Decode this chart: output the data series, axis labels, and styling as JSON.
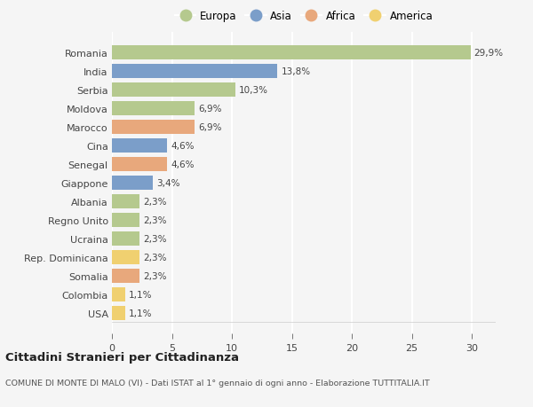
{
  "countries": [
    "Romania",
    "India",
    "Serbia",
    "Moldova",
    "Marocco",
    "Cina",
    "Senegal",
    "Giappone",
    "Albania",
    "Regno Unito",
    "Ucraina",
    "Rep. Dominicana",
    "Somalia",
    "Colombia",
    "USA"
  ],
  "values": [
    29.9,
    13.8,
    10.3,
    6.9,
    6.9,
    4.6,
    4.6,
    3.4,
    2.3,
    2.3,
    2.3,
    2.3,
    2.3,
    1.1,
    1.1
  ],
  "labels": [
    "29,9%",
    "13,8%",
    "10,3%",
    "6,9%",
    "6,9%",
    "4,6%",
    "4,6%",
    "3,4%",
    "2,3%",
    "2,3%",
    "2,3%",
    "2,3%",
    "2,3%",
    "1,1%",
    "1,1%"
  ],
  "continents": [
    "Europa",
    "Asia",
    "Europa",
    "Europa",
    "Africa",
    "Asia",
    "Africa",
    "Asia",
    "Europa",
    "Europa",
    "Europa",
    "America",
    "Africa",
    "America",
    "America"
  ],
  "colors": {
    "Europa": "#b5c98e",
    "Asia": "#7b9ec9",
    "Africa": "#e8a87c",
    "America": "#f0d070"
  },
  "legend_order": [
    "Europa",
    "Asia",
    "Africa",
    "America"
  ],
  "xlim": [
    0,
    32
  ],
  "xticks": [
    0,
    5,
    10,
    15,
    20,
    25,
    30
  ],
  "title": "Cittadini Stranieri per Cittadinanza",
  "subtitle": "COMUNE DI MONTE DI MALO (VI) - Dati ISTAT al 1° gennaio di ogni anno - Elaborazione TUTTITALIA.IT",
  "bg_color": "#f5f5f5",
  "grid_color": "#ffffff",
  "bar_height": 0.75
}
